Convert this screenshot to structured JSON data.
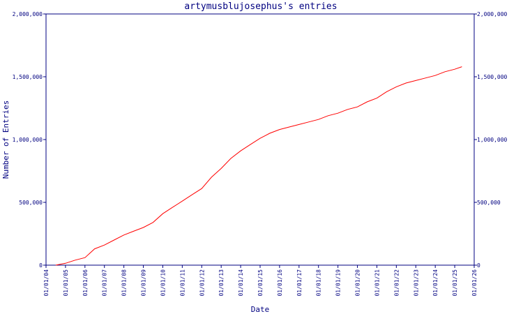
{
  "chart_data": {
    "type": "line",
    "title": "artymusblujosephus's entries",
    "xlabel": "Date",
    "ylabel": "Number of Entries",
    "ylim": [
      0,
      2000000
    ],
    "y_ticks": [
      0,
      500000,
      1000000,
      1500000,
      2000000
    ],
    "y_tick_labels": [
      "0",
      "500,000",
      "1,000,000",
      "1,500,000",
      "2,000,000"
    ],
    "x_range": [
      "2004-01-01",
      "2026-01-01"
    ],
    "x_tick_labels": [
      "01/01/04",
      "01/01/05",
      "01/01/06",
      "01/01/07",
      "01/01/08",
      "01/01/09",
      "01/01/10",
      "01/01/11",
      "01/01/12",
      "01/01/13",
      "01/01/14",
      "01/01/15",
      "01/01/16",
      "01/01/17",
      "01/01/18",
      "01/01/19",
      "01/01/20",
      "01/01/21",
      "01/01/22",
      "01/01/23",
      "01/01/24",
      "01/01/25",
      "01/01/26"
    ],
    "grid": false,
    "legend": "none",
    "series": [
      {
        "color": "#ff0000",
        "points": [
          [
            "2004-07-01",
            0
          ],
          [
            "2005-01-01",
            15000
          ],
          [
            "2005-07-01",
            40000
          ],
          [
            "2006-01-01",
            60000
          ],
          [
            "2006-07-01",
            130000
          ],
          [
            "2007-01-01",
            160000
          ],
          [
            "2007-07-01",
            200000
          ],
          [
            "2008-01-01",
            240000
          ],
          [
            "2008-07-01",
            270000
          ],
          [
            "2009-01-01",
            300000
          ],
          [
            "2009-07-01",
            340000
          ],
          [
            "2010-01-01",
            410000
          ],
          [
            "2010-07-01",
            460000
          ],
          [
            "2011-01-01",
            510000
          ],
          [
            "2011-07-01",
            560000
          ],
          [
            "2012-01-01",
            610000
          ],
          [
            "2012-07-01",
            700000
          ],
          [
            "2013-01-01",
            770000
          ],
          [
            "2013-07-01",
            850000
          ],
          [
            "2014-01-01",
            910000
          ],
          [
            "2014-07-01",
            960000
          ],
          [
            "2015-01-01",
            1010000
          ],
          [
            "2015-07-01",
            1050000
          ],
          [
            "2016-01-01",
            1080000
          ],
          [
            "2016-07-01",
            1100000
          ],
          [
            "2017-01-01",
            1120000
          ],
          [
            "2017-07-01",
            1140000
          ],
          [
            "2018-01-01",
            1160000
          ],
          [
            "2018-07-01",
            1190000
          ],
          [
            "2019-01-01",
            1210000
          ],
          [
            "2019-07-01",
            1240000
          ],
          [
            "2020-01-01",
            1260000
          ],
          [
            "2020-07-01",
            1300000
          ],
          [
            "2021-01-01",
            1330000
          ],
          [
            "2021-07-01",
            1380000
          ],
          [
            "2022-01-01",
            1420000
          ],
          [
            "2022-07-01",
            1450000
          ],
          [
            "2023-01-01",
            1470000
          ],
          [
            "2023-07-01",
            1490000
          ],
          [
            "2024-01-01",
            1510000
          ],
          [
            "2024-07-01",
            1540000
          ],
          [
            "2025-01-01",
            1560000
          ],
          [
            "2025-05-15",
            1580000
          ]
        ]
      }
    ]
  }
}
